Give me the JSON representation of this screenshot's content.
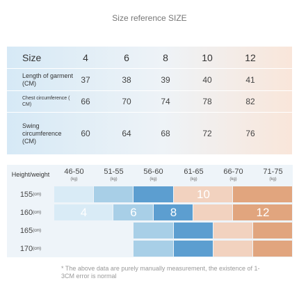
{
  "title": "Size reference SIZE",
  "size_table": {
    "header": "Size",
    "sizes": [
      4,
      6,
      8,
      10,
      12
    ],
    "rows": [
      {
        "label": "Length of garment (CM)",
        "values": [
          37,
          38,
          39,
          40,
          41
        ]
      },
      {
        "label": "Chest circumference ( CM)",
        "values": [
          66,
          70,
          74,
          78,
          82
        ]
      },
      {
        "label": "Swing circumference (CM)",
        "values": [
          60,
          64,
          68,
          72,
          76
        ]
      }
    ]
  },
  "fit_table": {
    "corner": "Height/weight",
    "weights": [
      {
        "range": "46-50",
        "unit": "(kg)"
      },
      {
        "range": "51-55",
        "unit": "(kg)"
      },
      {
        "range": "56-60",
        "unit": "(kg)"
      },
      {
        "range": "61-65",
        "unit": "(kg)"
      },
      {
        "range": "66-70",
        "unit": "(kg)"
      },
      {
        "range": "71-75",
        "unit": "(kg)"
      }
    ],
    "heights": [
      {
        "value": 155,
        "unit": "(cm)"
      },
      {
        "value": 160,
        "unit": "(cm)"
      },
      {
        "value": 165,
        "unit": "(cm)"
      },
      {
        "value": 170,
        "unit": "(cm)"
      }
    ],
    "size_labels": [
      10,
      4,
      6,
      8,
      12
    ]
  },
  "note": "* The above data are purely manually measurement, the existence of 1-3CM error is normal"
}
